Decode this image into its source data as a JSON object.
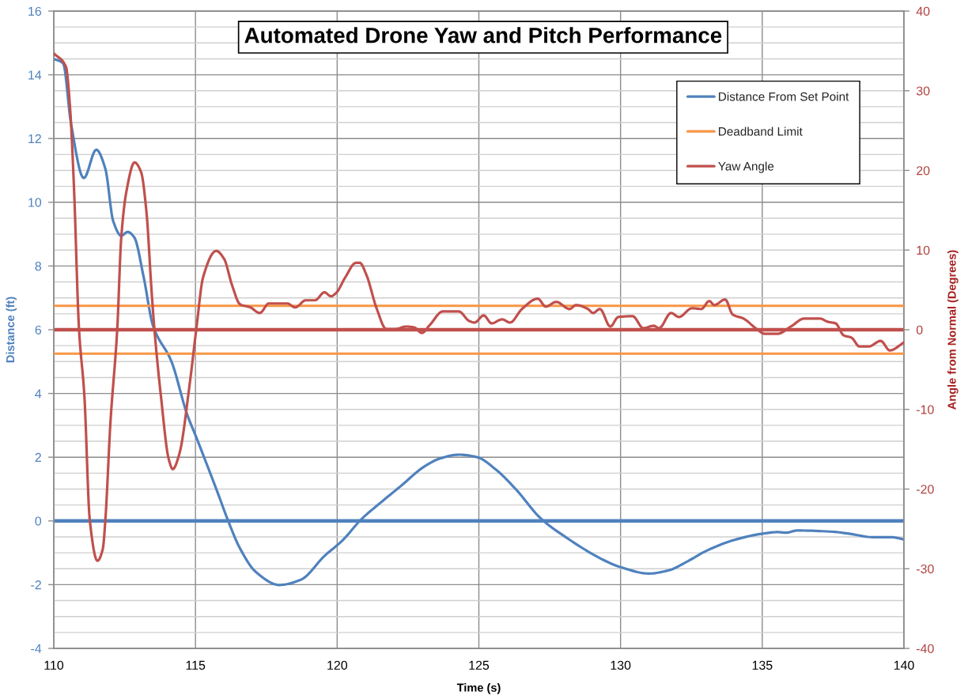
{
  "chart_data": {
    "type": "line",
    "title": "Automated Drone Yaw and Pitch Performance",
    "xlabel": "Time (s)",
    "ylabel": "Distance (ft)",
    "y2label": "Angle from Normal (Degrees)",
    "xlim": [
      110,
      140
    ],
    "xticks": [
      110,
      115,
      120,
      125,
      130,
      135,
      140
    ],
    "ylim": [
      -4,
      16
    ],
    "yticks": [
      -4,
      {
        "value": -3.5,
        "label": null
      },
      {
        "value": -3,
        "label": null
      },
      {
        "value": -2.5,
        "label": null
      },
      -2,
      {
        "value": -1.5,
        "label": null
      },
      {
        "value": -1,
        "label": null
      },
      {
        "value": -0.5,
        "label": null
      },
      0,
      {
        "value": 0.5,
        "label": null
      },
      {
        "value": 1,
        "label": null
      },
      {
        "value": 1.5,
        "label": null
      },
      2,
      {
        "value": 2.5,
        "label": null
      },
      {
        "value": 3,
        "label": null
      },
      {
        "value": 3.5,
        "label": null
      },
      4,
      {
        "value": 4.5,
        "label": null
      },
      {
        "value": 5,
        "label": null
      },
      {
        "value": 5.5,
        "label": null
      },
      6,
      {
        "value": 6.5,
        "label": null
      },
      {
        "value": 7,
        "label": null
      },
      {
        "value": 7.5,
        "label": null
      },
      8,
      {
        "value": 8.5,
        "label": null
      },
      {
        "value": 9,
        "label": null
      },
      {
        "value": 9.5,
        "label": null
      },
      10,
      {
        "value": 10.5,
        "label": null
      },
      {
        "value": 11,
        "label": null
      },
      {
        "value": 11.5,
        "label": null
      },
      12,
      {
        "value": 12.5,
        "label": null
      },
      {
        "value": 13,
        "label": null
      },
      {
        "value": 13.5,
        "label": null
      },
      14,
      {
        "value": 14.5,
        "label": null
      },
      {
        "value": 15,
        "label": null
      },
      {
        "value": 15.5,
        "label": null
      },
      16
    ],
    "y2lim": [
      -40,
      40
    ],
    "y2ticks": [
      -40,
      -30,
      -20,
      -10,
      0,
      10,
      20,
      30,
      40
    ],
    "grid": true,
    "legend": "top right",
    "ref_lines": [
      {
        "axis": "y",
        "value": 0,
        "color": "#4f81bd"
      },
      {
        "axis": "y2",
        "value": 0,
        "color": "#c0504d"
      }
    ],
    "series": [
      {
        "name": "Distance From Set Point",
        "color": "#4f81bd",
        "x": [
          110,
          110.33,
          110.61,
          111.06,
          111.5,
          111.82,
          112.1,
          112.38,
          112.61,
          112.84,
          113.17,
          113.5,
          114.15,
          114.7,
          115.03,
          115.82,
          116.15,
          116.57,
          117.13,
          117.96,
          118.71,
          119.55,
          120.19,
          120.85,
          121.5,
          122.24,
          123.08,
          123.63,
          124.29,
          124.94,
          125.59,
          126.34,
          127.17,
          128.1,
          129.5,
          130.0,
          131.0,
          131.7,
          132.3,
          133.0,
          134.0,
          135.08,
          135.55,
          135.83,
          136.24,
          137.5,
          138.06,
          138.9,
          139.55,
          140
        ],
        "values": [
          14.5,
          14.36,
          12.46,
          10.76,
          11.65,
          11.05,
          9.4,
          8.95,
          9.07,
          8.9,
          7.66,
          6.13,
          5.01,
          3.36,
          2.62,
          0.8,
          0.01,
          -0.86,
          -1.6,
          -2.01,
          -1.85,
          -1.1,
          -0.61,
          0.05,
          0.55,
          1.09,
          1.71,
          1.96,
          2.08,
          2.0,
          1.62,
          0.96,
          0.09,
          -0.53,
          -1.27,
          -1.45,
          -1.65,
          -1.55,
          -1.3,
          -0.95,
          -0.6,
          -0.39,
          -0.35,
          -0.37,
          -0.3,
          -0.34,
          -0.4,
          -0.51,
          -0.51,
          -0.58
        ]
      },
      {
        "name": "Deadband Limit",
        "color": "#f79646",
        "axis": "y2",
        "x": [
          110,
          140
        ],
        "values": [
          3,
          3
        ]
      },
      {
        "color": "#f79646",
        "axis": "y2",
        "x": [
          110,
          140
        ],
        "values": [
          -3,
          -3
        ]
      },
      {
        "name": "Yaw Angle",
        "color": "#c0504d",
        "axis": "y2",
        "x": [
          110,
          110.43,
          110.57,
          110.71,
          110.89,
          111.08,
          111.27,
          111.54,
          111.73,
          111.82,
          112.0,
          112.24,
          112.38,
          112.57,
          112.85,
          113.08,
          113.27,
          113.45,
          113.55,
          113.78,
          114.06,
          114.2,
          114.43,
          114.8,
          115.03,
          115.27,
          115.73,
          116.01,
          116.29,
          116.57,
          116.94,
          117.27,
          117.59,
          118.24,
          118.52,
          118.89,
          119.22,
          119.55,
          119.78,
          119.96,
          120.29,
          120.66,
          120.8,
          121.03,
          121.4,
          121.73,
          122.06,
          122.43,
          122.71,
          122.99,
          123.27,
          123.73,
          124.29,
          124.66,
          124.85,
          125.17,
          125.45,
          125.82,
          126.1,
          126.52,
          127.08,
          127.36,
          127.73,
          128.2,
          128.43,
          128.85,
          129.03,
          129.27,
          129.64,
          129.92,
          130.43,
          130.8,
          131.17,
          131.36,
          131.78,
          132.06,
          132.52,
          132.85,
          133.13,
          133.31,
          133.69,
          133.96,
          134.34,
          134.8,
          135.08,
          135.55,
          136.01,
          136.48,
          137.04,
          137.31,
          137.59,
          137.87,
          138.15,
          138.43,
          138.76,
          139.18,
          139.5,
          140
        ],
        "values": [
          34.7,
          33.0,
          28.1,
          18.1,
          0.1,
          -8.3,
          -23.9,
          -29.0,
          -27.5,
          -23.9,
          -11.6,
          0.1,
          11.5,
          17.5,
          21.0,
          19.8,
          14.8,
          4.9,
          0.1,
          -8.3,
          -16.3,
          -17.5,
          -15.6,
          -6.7,
          0.1,
          6.6,
          9.9,
          8.9,
          5.6,
          3.2,
          2.8,
          2.1,
          3.3,
          3.3,
          2.8,
          3.7,
          3.7,
          4.7,
          4.2,
          4.6,
          6.6,
          8.4,
          8.4,
          6.9,
          2.6,
          0.1,
          0.1,
          0.4,
          0.3,
          -0.4,
          0.6,
          2.3,
          2.3,
          1.1,
          0.9,
          1.8,
          0.8,
          1.3,
          0.9,
          2.6,
          3.9,
          2.9,
          3.5,
          2.6,
          3.1,
          2.6,
          2.1,
          2.6,
          0.4,
          1.6,
          1.7,
          0.2,
          0.5,
          0.2,
          2.1,
          1.6,
          2.7,
          2.6,
          3.6,
          3.1,
          3.8,
          1.9,
          1.4,
          0.1,
          -0.5,
          -0.5,
          0.4,
          1.4,
          1.4,
          1.0,
          0.8,
          -0.7,
          -1.0,
          -2.1,
          -2.1,
          -1.4,
          -2.6,
          -1.6
        ]
      }
    ]
  }
}
